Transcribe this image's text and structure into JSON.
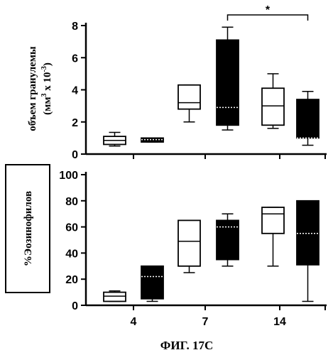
{
  "figure_caption": "ФИГ. 17С",
  "chart_data": [
    {
      "type": "box",
      "ylabel_line1": "объем гранулемы",
      "ylabel_line2_prefix": "(мм",
      "ylabel_line2_sup1": "3",
      "ylabel_line2_mid": " x 10",
      "ylabel_line2_sup2": "-3",
      "ylabel_line2_suffix": ")",
      "ylim": [
        0,
        8
      ],
      "yticks": [
        "0",
        "2",
        "4",
        "6",
        "8"
      ],
      "xticks": [
        "4",
        "7",
        "14"
      ],
      "significance": "*",
      "series": [
        {
          "group": "4",
          "fill": "white",
          "min": 0.5,
          "q1": 0.6,
          "median": 0.85,
          "q3": 1.1,
          "max": 1.35
        },
        {
          "group": "4",
          "fill": "black",
          "min": 0.75,
          "q1": 0.75,
          "median": 0.9,
          "q3": 1.0,
          "max": 1.0
        },
        {
          "group": "7",
          "fill": "white",
          "min": 2.0,
          "q1": 2.8,
          "median": 3.2,
          "q3": 4.3,
          "max": 4.3
        },
        {
          "group": "7",
          "fill": "black",
          "min": 1.5,
          "q1": 1.8,
          "median": 2.9,
          "q3": 7.1,
          "max": 7.9
        },
        {
          "group": "14",
          "fill": "white",
          "min": 1.6,
          "q1": 1.8,
          "median": 3.0,
          "q3": 4.1,
          "max": 5.0
        },
        {
          "group": "14",
          "fill": "black",
          "min": 0.55,
          "q1": 1.0,
          "median": 1.0,
          "q3": 3.4,
          "max": 3.9
        }
      ]
    },
    {
      "type": "box",
      "ylabel": "%Эозинофилов",
      "ylim": [
        0,
        100
      ],
      "yticks": [
        "0",
        "20",
        "40",
        "60",
        "80",
        "100"
      ],
      "xticks": [
        "4",
        "7",
        "14"
      ],
      "series": [
        {
          "group": "4",
          "fill": "white",
          "min": 3,
          "q1": 3,
          "median": 7,
          "q3": 10,
          "max": 11
        },
        {
          "group": "4",
          "fill": "black",
          "min": 3,
          "q1": 5,
          "median": 22,
          "q3": 30,
          "max": 30
        },
        {
          "group": "7",
          "fill": "white",
          "min": 25,
          "q1": 30,
          "median": 49,
          "q3": 65,
          "max": 65
        },
        {
          "group": "7",
          "fill": "black",
          "min": 30,
          "q1": 35,
          "median": 60,
          "q3": 65,
          "max": 70
        },
        {
          "group": "14",
          "fill": "white",
          "min": 30,
          "q1": 55,
          "median": 70,
          "q3": 75,
          "max": 75
        },
        {
          "group": "14",
          "fill": "black",
          "min": 3,
          "q1": 31,
          "median": 55,
          "q3": 80,
          "max": 80
        }
      ]
    }
  ]
}
